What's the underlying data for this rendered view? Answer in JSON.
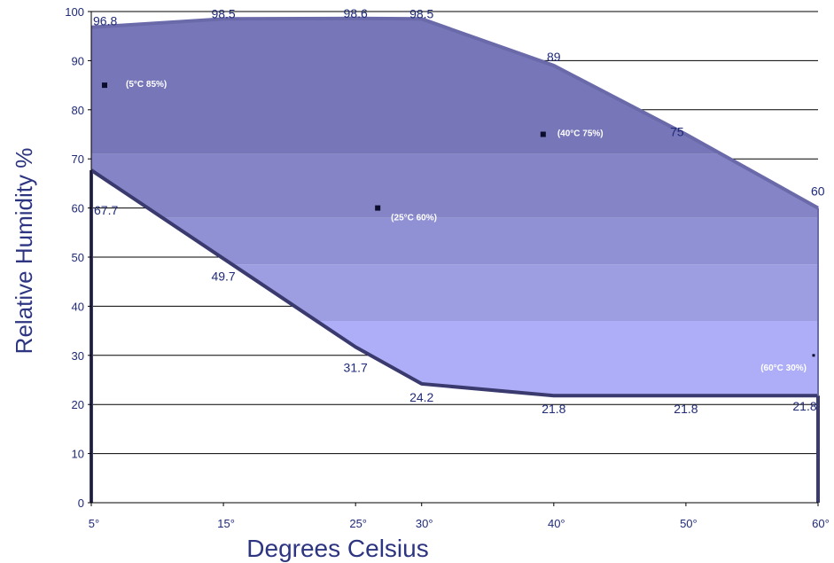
{
  "chart_data": {
    "type": "area",
    "title": "",
    "xlabel": "Degrees Celsius",
    "ylabel": "Relative Humidity %",
    "xlim": [
      5,
      60
    ],
    "ylim": [
      0,
      100
    ],
    "grid": "horizontal",
    "x_ticks": [
      5,
      15,
      25,
      30,
      40,
      50,
      60
    ],
    "x_tick_labels": [
      "5°",
      "15°",
      "25°",
      "30°",
      "40°",
      "50°",
      "60°"
    ],
    "y_ticks": [
      0,
      10,
      20,
      30,
      40,
      50,
      60,
      70,
      80,
      90,
      100
    ],
    "upper_boundary": [
      {
        "x": 5,
        "y": 96.8,
        "label": "96.8"
      },
      {
        "x": 15,
        "y": 98.5,
        "label": "98.5"
      },
      {
        "x": 25,
        "y": 98.6,
        "label": "98.6"
      },
      {
        "x": 30,
        "y": 98.5,
        "label": "98.5"
      },
      {
        "x": 40,
        "y": 89,
        "label": "89"
      },
      {
        "x": 50,
        "y": 75,
        "label": "75"
      },
      {
        "x": 60,
        "y": 60,
        "label": "60"
      }
    ],
    "lower_boundary": [
      {
        "x": 5,
        "y": 67.7,
        "label": "67.7"
      },
      {
        "x": 15,
        "y": 49.7,
        "label": "49.7"
      },
      {
        "x": 25,
        "y": 31.7,
        "label": "31.7"
      },
      {
        "x": 30,
        "y": 24.2,
        "label": "24.2"
      },
      {
        "x": 40,
        "y": 21.8,
        "label": "21.8"
      },
      {
        "x": 50,
        "y": 21.8,
        "label": "21.8"
      },
      {
        "x": 60,
        "y": 21.8,
        "label": "21.8"
      }
    ],
    "points": [
      {
        "x": 5,
        "y": 85,
        "label": "(5°C 85%)"
      },
      {
        "x": 25,
        "y": 60,
        "label": "(25°C 60%)"
      },
      {
        "x": 40,
        "y": 75,
        "label": "(40°C 75%)"
      },
      {
        "x": 60,
        "y": 30,
        "label": "(60°C 30%)"
      }
    ],
    "colors": {
      "region_top": "#7474b6",
      "region_bottom": "#b2b2ff",
      "boundary_upper": "#6a6aaa",
      "boundary_lower": "#3a3a6e",
      "text": "#1f2a78",
      "axis_title": "#2d3580",
      "grid": "#000000"
    }
  }
}
